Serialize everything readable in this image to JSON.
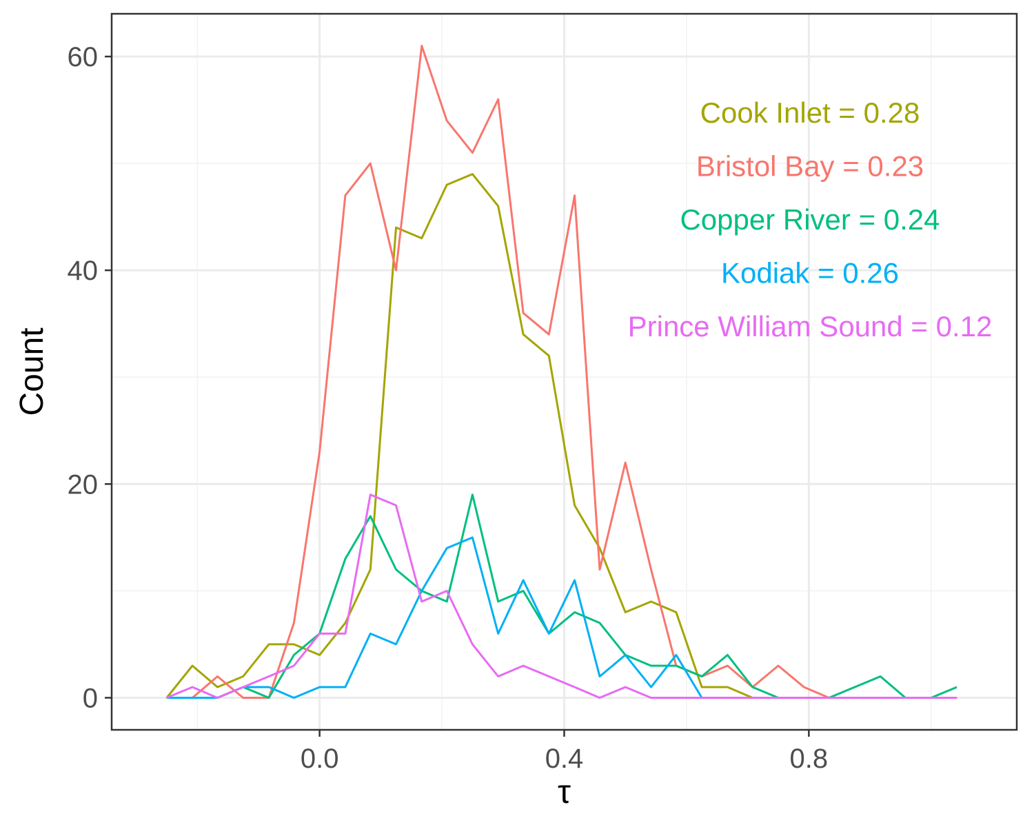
{
  "chart_data": {
    "type": "line",
    "xlabel": "τ",
    "ylabel": "Count",
    "xlim": [
      -0.34,
      1.14
    ],
    "ylim": [
      -3,
      64
    ],
    "x_ticks": [
      0.0,
      0.4,
      0.8
    ],
    "x_tick_labels": [
      "0.0",
      "0.4",
      "0.8"
    ],
    "y_ticks": [
      0,
      20,
      40,
      60
    ],
    "y_tick_labels": [
      "0",
      "20",
      "40",
      "60"
    ],
    "grid": true,
    "x": [
      -0.25,
      -0.208,
      -0.167,
      -0.125,
      -0.083,
      -0.042,
      0.0,
      0.042,
      0.083,
      0.125,
      0.167,
      0.208,
      0.25,
      0.292,
      0.333,
      0.375,
      0.417,
      0.458,
      0.5,
      0.542,
      0.583,
      0.625,
      0.667,
      0.708,
      0.75,
      0.792,
      0.833,
      0.875,
      0.917,
      0.958,
      1.0,
      1.042
    ],
    "series": [
      {
        "color": "#A3A500",
        "values": [
          0,
          3,
          1,
          2,
          5,
          5,
          4,
          7,
          12,
          44,
          43,
          48,
          49,
          46,
          34,
          32,
          18,
          14,
          8,
          9,
          8,
          1,
          1,
          0,
          0,
          0,
          0,
          0,
          0,
          0,
          0,
          0
        ]
      },
      {
        "color": "#F8766D",
        "values": [
          0,
          0,
          2,
          0,
          0,
          7,
          23,
          47,
          50,
          40,
          61,
          54,
          51,
          56,
          36,
          34,
          47,
          12,
          22,
          12,
          3,
          2,
          3,
          1,
          3,
          1,
          0,
          0,
          0,
          0,
          0,
          0
        ]
      },
      {
        "color": "#00BF7D",
        "values": [
          0,
          0,
          0,
          1,
          0,
          4,
          6,
          13,
          17,
          12,
          10,
          9,
          19,
          9,
          10,
          6,
          8,
          7,
          4,
          3,
          3,
          2,
          4,
          1,
          0,
          0,
          0,
          1,
          2,
          0,
          0,
          1
        ]
      },
      {
        "color": "#00B0F6",
        "values": [
          0,
          0,
          0,
          1,
          1,
          0,
          1,
          1,
          6,
          5,
          10,
          14,
          15,
          6,
          11,
          6,
          11,
          2,
          4,
          1,
          4,
          0,
          0,
          0,
          0,
          0,
          0,
          0,
          0,
          0,
          0,
          0
        ]
      },
      {
        "color": "#E76BF3",
        "values": [
          0,
          1,
          0,
          1,
          2,
          3,
          6,
          6,
          19,
          18,
          9,
          10,
          5,
          2,
          3,
          2,
          1,
          0,
          1,
          0,
          0,
          0,
          0,
          0,
          0,
          0,
          0,
          0,
          0,
          0,
          0,
          0
        ]
      }
    ],
    "annotations": [
      {
        "text": "Cook Inlet = 0.28",
        "color": "#A3A500"
      },
      {
        "text": "Bristol Bay = 0.23",
        "color": "#F8766D"
      },
      {
        "text": "Copper River = 0.24",
        "color": "#00BF7D"
      },
      {
        "text": "Kodiak = 0.26",
        "color": "#00B0F6"
      },
      {
        "text": "Prince William Sound = 0.12",
        "color": "#E76BF3"
      }
    ]
  }
}
